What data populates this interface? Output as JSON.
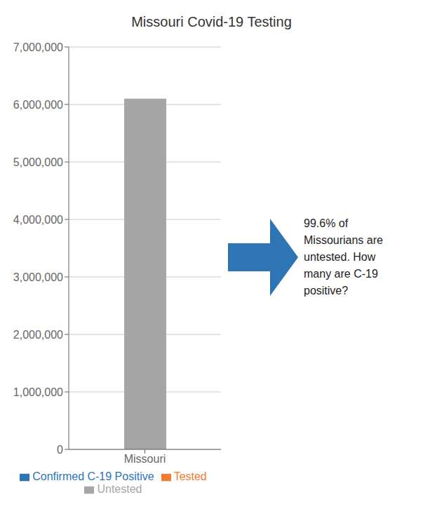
{
  "chart_data": {
    "type": "bar",
    "title": "Missouri Covid-19 Testing",
    "categories": [
      "Missouri"
    ],
    "series": [
      {
        "name": "Confirmed C-19 Positive",
        "color": "#2e75b6",
        "values": [
          null
        ]
      },
      {
        "name": "Tested",
        "color": "#ed7d31",
        "values": [
          null
        ]
      },
      {
        "name": "Untested",
        "color": "#a6a6a6",
        "values": [
          6100000
        ]
      }
    ],
    "stacked": true,
    "ylim": [
      0,
      7000000
    ],
    "yticks": [
      0,
      {
        "value": 1000000,
        "label": "1,000,000"
      },
      {
        "value": 2000000,
        "label": "2,000,000"
      },
      {
        "value": 3000000,
        "label": "3,000,000"
      },
      {
        "value": 4000000,
        "label": "4,000,000"
      },
      {
        "value": 5000000,
        "label": "5,000,000"
      },
      {
        "value": 6000000,
        "label": "6,000,000"
      },
      {
        "value": 7000000,
        "label": "7,000,000"
      }
    ],
    "grid": true,
    "legend": "bottom",
    "annotation": {
      "text": "99.6% of\nMissourians are\nuntested. How\nmany are C-19\npositive?",
      "color": "#2e75b6"
    }
  }
}
